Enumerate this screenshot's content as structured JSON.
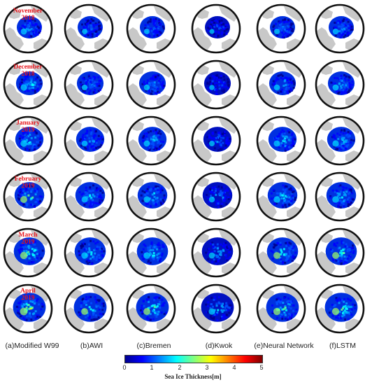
{
  "months": [
    {
      "line1": "November",
      "line2": "2018"
    },
    {
      "line1": "December",
      "line2": "2018"
    },
    {
      "line1": "January",
      "line2": "2019"
    },
    {
      "line1": "February",
      "line2": "2019"
    },
    {
      "line1": "March",
      "line2": "2019"
    },
    {
      "line1": "April",
      "line2": "2019"
    }
  ],
  "columns": [
    {
      "label": "(a)Modified W99"
    },
    {
      "label": "(b)AWI"
    },
    {
      "label": "(c)Bremen"
    },
    {
      "label": "(d)Kwok"
    },
    {
      "label": "(e)Neural Network"
    },
    {
      "label": "(f)LSTM"
    }
  ],
  "colorbar": {
    "title": "Sea Ice Thickness[m]",
    "ticks": [
      "0",
      "1",
      "2",
      "3",
      "4",
      "5"
    ],
    "min": 0,
    "max": 5,
    "colors": [
      "#00008f",
      "#0000ff",
      "#0080ff",
      "#00ffff",
      "#80ff80",
      "#ffff00",
      "#ff8000",
      "#ff0000",
      "#800000"
    ]
  },
  "colors": {
    "land": "#c8c8c8",
    "ocean": "#ffffff",
    "month_label": "#e8141b"
  }
}
